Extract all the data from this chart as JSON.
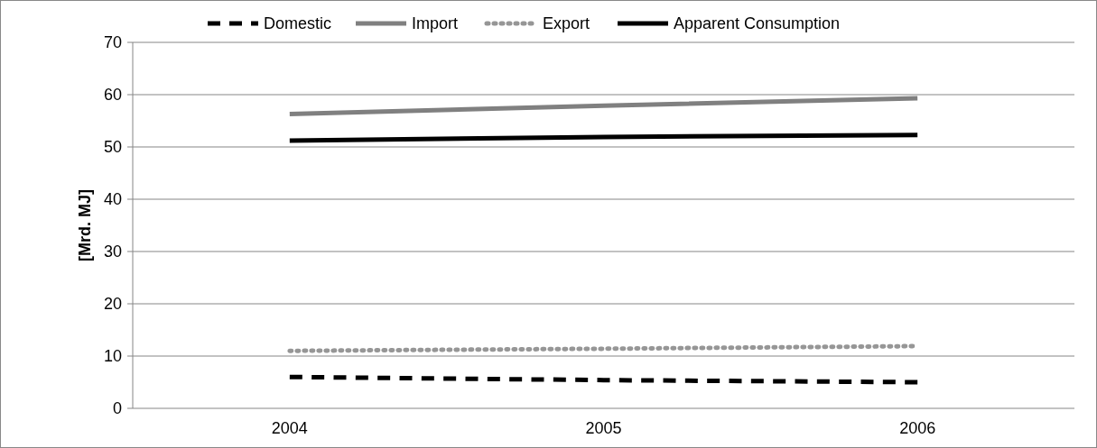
{
  "chart_data": {
    "type": "line",
    "ylabel": "[Mrd. MJ]",
    "categories": [
      "2004",
      "2005",
      "2006"
    ],
    "series": [
      {
        "name": "Domestic",
        "color": "#000000",
        "line_style": "dashed",
        "values": [
          6,
          5.4,
          5
        ]
      },
      {
        "name": "Import",
        "color": "#808080",
        "line_style": "solid",
        "values": [
          56.3,
          57.9,
          59.3
        ]
      },
      {
        "name": "Export",
        "color": "#969696",
        "line_style": "dotted",
        "values": [
          11,
          11.4,
          11.9
        ]
      },
      {
        "name": "Apparent Consumption",
        "color": "#000000",
        "line_style": "solid",
        "values": [
          51.2,
          51.9,
          52.3
        ]
      }
    ],
    "ylim": [
      0,
      70
    ],
    "yticks": [
      0,
      10,
      20,
      30,
      40,
      50,
      60,
      70
    ],
    "grid": "y",
    "legend": "top",
    "marker": "none"
  }
}
